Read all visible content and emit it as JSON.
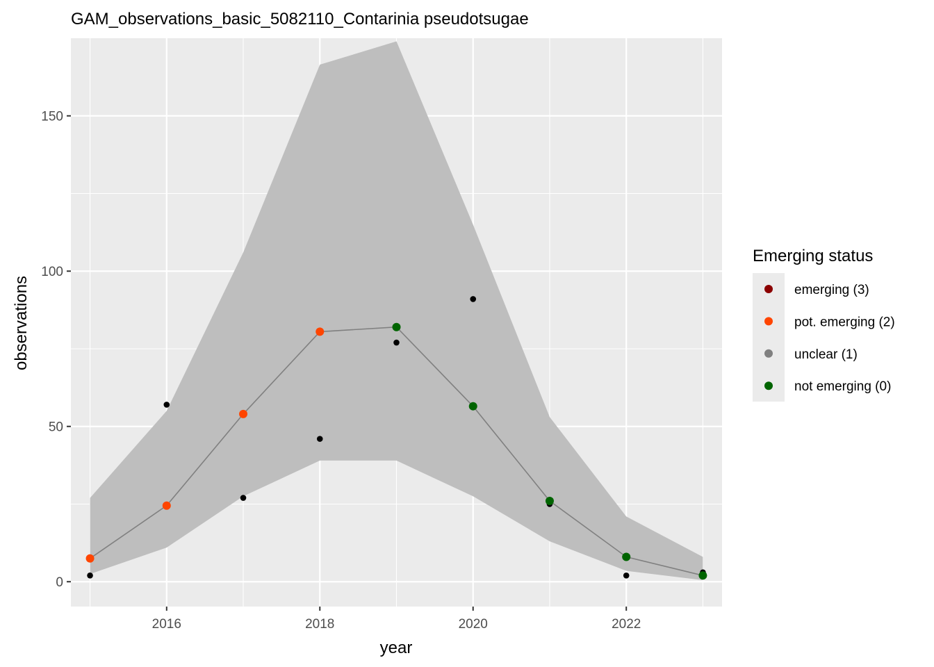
{
  "chart_data": {
    "type": "line",
    "title": "GAM_observations_basic_5082110_Contarinia pseudotsugae",
    "xlabel": "year",
    "ylabel": "observations",
    "xlim": [
      2014.75,
      2023.25
    ],
    "ylim": [
      -8,
      175
    ],
    "x_ticks": [
      2016,
      2018,
      2020,
      2022
    ],
    "x_tick_labels": [
      "2016",
      "2018",
      "2020",
      "2022"
    ],
    "x_minor_ticks": [
      2015,
      2017,
      2019,
      2021,
      2023
    ],
    "y_ticks": [
      0,
      50,
      100,
      150
    ],
    "y_tick_labels": [
      "0",
      "50",
      "100",
      "150"
    ],
    "y_minor_ticks": [
      25,
      75,
      125
    ],
    "grid": true,
    "background_color": "#ebebeb",
    "grid_color": "#ffffff",
    "ribbon_color": "#bebebe",
    "line_color": "#808080",
    "observed_color": "#000000",
    "observed": {
      "x": [
        2015,
        2016,
        2017,
        2018,
        2019,
        2020,
        2021,
        2022,
        2023
      ],
      "y": [
        2,
        57,
        27,
        46,
        77,
        91,
        25,
        2,
        3
      ]
    },
    "fitted": {
      "x": [
        2015,
        2016,
        2017,
        2018,
        2019,
        2020,
        2021,
        2022,
        2023
      ],
      "y": [
        7.5,
        24.5,
        54,
        80.5,
        82,
        56.5,
        26,
        8,
        2
      ],
      "status": [
        2,
        2,
        2,
        2,
        0,
        0,
        0,
        0,
        0
      ]
    },
    "confidence_band": {
      "x": [
        2015,
        2016,
        2017,
        2018,
        2019,
        2020,
        2021,
        2022,
        2023
      ],
      "lower": [
        2.5,
        11,
        27.5,
        39,
        39,
        27.5,
        13,
        3.5,
        0.5
      ],
      "upper": [
        27,
        55,
        106,
        166.5,
        174,
        115,
        53,
        21,
        8
      ]
    },
    "legend": {
      "title": "Emerging status",
      "placement": "right",
      "items": [
        {
          "label": "emerging (3)",
          "color": "#8b0000",
          "status": 3
        },
        {
          "label": "pot. emerging (2)",
          "color": "#ff4500",
          "status": 2
        },
        {
          "label": "unclear (1)",
          "color": "#808080",
          "status": 1
        },
        {
          "label": "not emerging (0)",
          "color": "#006400",
          "status": 0
        }
      ]
    }
  }
}
